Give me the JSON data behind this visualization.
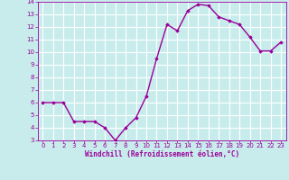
{
  "x": [
    0,
    1,
    2,
    3,
    4,
    5,
    6,
    7,
    8,
    9,
    10,
    11,
    12,
    13,
    14,
    15,
    16,
    17,
    18,
    19,
    20,
    21,
    22,
    23
  ],
  "y": [
    6,
    6,
    6,
    4.5,
    4.5,
    4.5,
    4,
    3,
    4,
    4.8,
    6.5,
    9.5,
    12.2,
    11.7,
    13.3,
    13.8,
    13.7,
    12.8,
    12.5,
    12.2,
    11.2,
    10.1,
    10.1,
    10.8
  ],
  "xlim": [
    -0.5,
    23.5
  ],
  "ylim": [
    3,
    14
  ],
  "yticks": [
    3,
    4,
    5,
    6,
    7,
    8,
    9,
    10,
    11,
    12,
    13,
    14
  ],
  "xticks": [
    0,
    1,
    2,
    3,
    4,
    5,
    6,
    7,
    8,
    9,
    10,
    11,
    12,
    13,
    14,
    15,
    16,
    17,
    18,
    19,
    20,
    21,
    22,
    23
  ],
  "xlabel": "Windchill (Refroidissement éolien,°C)",
  "line_color": "#990099",
  "marker": "D",
  "marker_size": 1.8,
  "bg_color": "#c8ecec",
  "grid_color": "#ffffff",
  "tick_color": "#990099",
  "label_color": "#990099",
  "line_width": 1.0,
  "font_size_ticks": 5.0,
  "font_size_label": 5.5
}
